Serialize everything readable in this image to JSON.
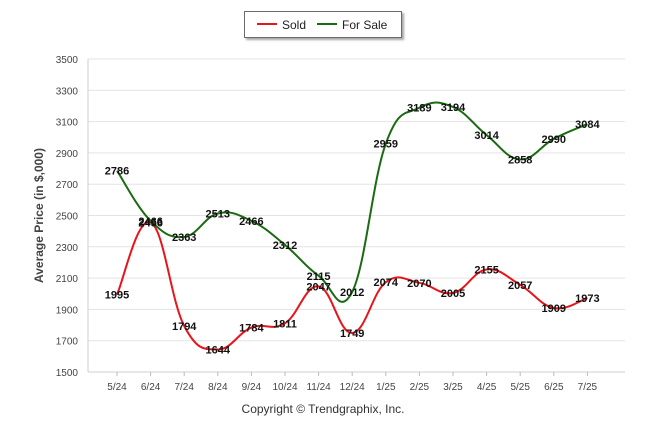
{
  "chart_data": {
    "type": "line",
    "ylabel": "Average Price (in $,000)",
    "ylim": [
      1500,
      3500
    ],
    "yticks": [
      1500,
      1700,
      1900,
      2100,
      2300,
      2500,
      2700,
      2900,
      3100,
      3300,
      3500
    ],
    "categories": [
      "5/24",
      "6/24",
      "7/24",
      "8/24",
      "9/24",
      "10/24",
      "11/24",
      "12/24",
      "1/25",
      "2/25",
      "3/25",
      "4/25",
      "5/25",
      "6/25",
      "7/25"
    ],
    "grid": true,
    "legend_position": "top-center",
    "series": [
      {
        "name": "Sold",
        "color": "#e8141b",
        "values": [
          1995,
          2456,
          1794,
          1644,
          1784,
          1811,
          2047,
          1749,
          2074,
          2070,
          2005,
          2155,
          2057,
          1909,
          1973
        ]
      },
      {
        "name": "For Sale",
        "color": "#1a6b12",
        "values": [
          2786,
          2466,
          2363,
          2513,
          2466,
          2312,
          2115,
          2012,
          2959,
          3189,
          3194,
          3014,
          2858,
          2990,
          3084
        ]
      }
    ]
  },
  "footer": {
    "copyright": "Copyright © Trendgraphix, Inc."
  }
}
